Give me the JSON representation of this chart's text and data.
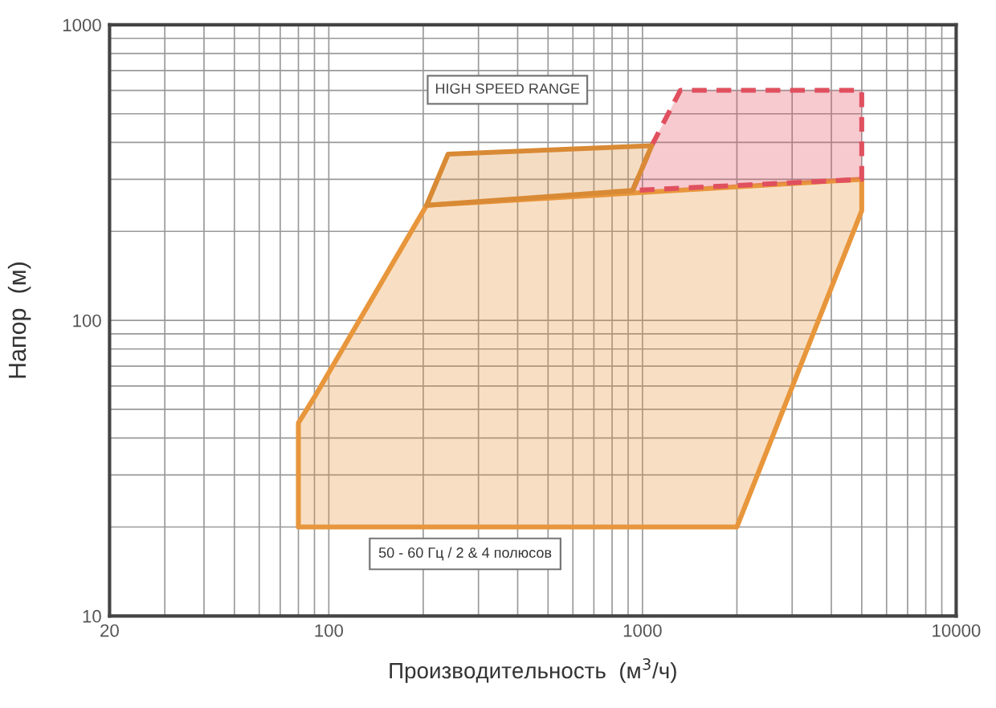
{
  "chart_data": {
    "type": "area",
    "xlabel": "Производительность  (м$^{3}$/ч)",
    "ylabel": "Напор  (м)",
    "log": "xy",
    "grid": true,
    "xlim": [
      20,
      10000
    ],
    "xticks": [
      20,
      100,
      1000,
      10000
    ],
    "ylim": [
      10,
      1000
    ],
    "yticks": [
      10,
      100,
      1000
    ],
    "series": [
      {
        "color": "#e8963c",
        "line_style": "solid",
        "x": [
          80,
          80,
          90,
          205,
          5000,
          5000,
          2000
        ],
        "values": [
          20,
          45,
          55,
          245,
          300,
          235,
          20
        ]
      },
      {
        "color": "#e0505f",
        "line_style": "dashed",
        "x": [
          930,
          1070,
          1320,
          5000,
          5000
        ],
        "values": [
          275,
          390,
          600,
          600,
          300
        ]
      },
      {
        "color": "#d98a35",
        "line_style": "solid",
        "x": [
          205,
          240,
          1070,
          930
        ],
        "values": [
          245,
          365,
          390,
          275
        ]
      }
    ],
    "annotations": [
      "HIGH SPEED RANGE",
      "50 - 60 Гц / 2 & 4 полюсов"
    ]
  }
}
